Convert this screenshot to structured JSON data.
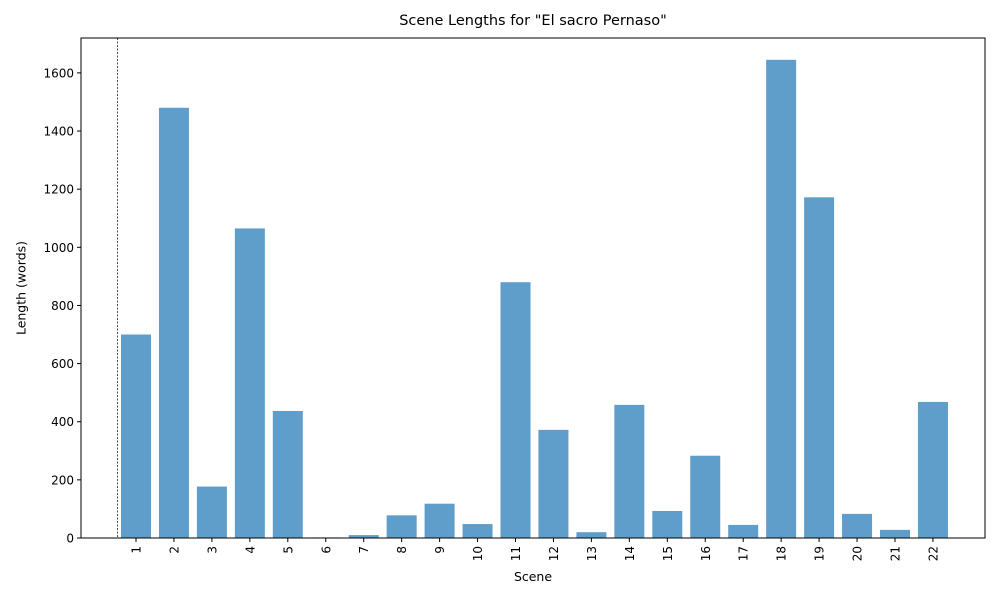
{
  "chart_data": {
    "type": "bar",
    "title": "Scene Lengths for \"El sacro Pernaso\"",
    "xlabel": "Scene",
    "ylabel": "Length (words)",
    "categories": [
      "1",
      "2",
      "3",
      "4",
      "5",
      "6",
      "7",
      "8",
      "9",
      "10",
      "11",
      "12",
      "13",
      "14",
      "15",
      "16",
      "17",
      "18",
      "19",
      "20",
      "21",
      "22"
    ],
    "values": [
      700,
      1480,
      177,
      1065,
      437,
      2,
      10,
      78,
      118,
      48,
      880,
      372,
      20,
      458,
      93,
      283,
      45,
      1645,
      1172,
      83,
      28,
      468
    ],
    "ylim": [
      0,
      1720
    ],
    "yticks": [
      0,
      200,
      400,
      600,
      800,
      1000,
      1200,
      1400,
      1600
    ],
    "bar_color": "#5f9ecb",
    "grid": false,
    "reference_line": {
      "style": "dashed",
      "color": "#000000",
      "position": "left of first bar"
    }
  }
}
